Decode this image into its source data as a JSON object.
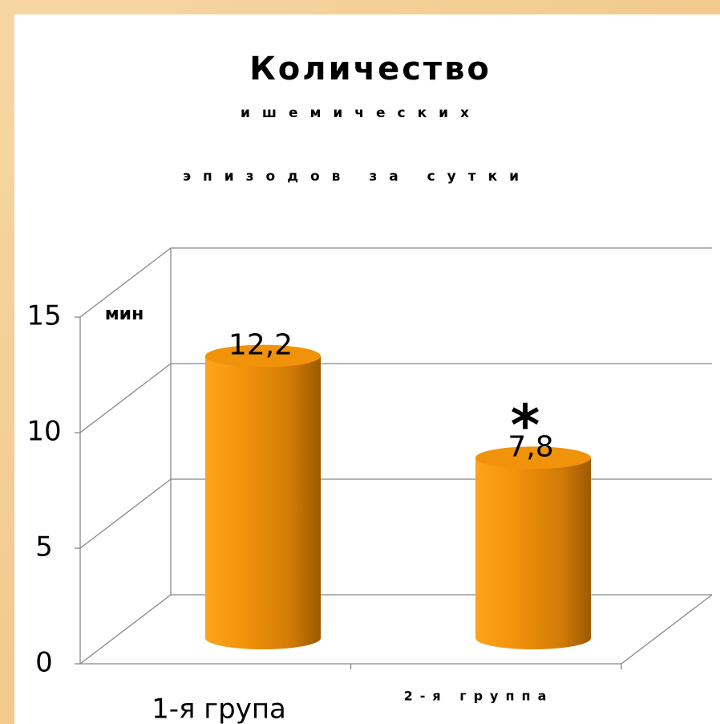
{
  "chart_data": {
    "type": "bar3d",
    "title": "Количество",
    "subtitle": [
      "ишемических",
      "эпизодов за сутки"
    ],
    "y_axis_label": "мин",
    "categories": [
      "1-я група",
      "2-я группа"
    ],
    "values": [
      12.2,
      7.8
    ],
    "value_labels": [
      "12,2",
      "7,8"
    ],
    "annotation": "*",
    "color": "#f0920a",
    "ylim": [
      0,
      15
    ],
    "yticks": [
      0,
      5,
      10,
      15
    ],
    "grid": true
  }
}
